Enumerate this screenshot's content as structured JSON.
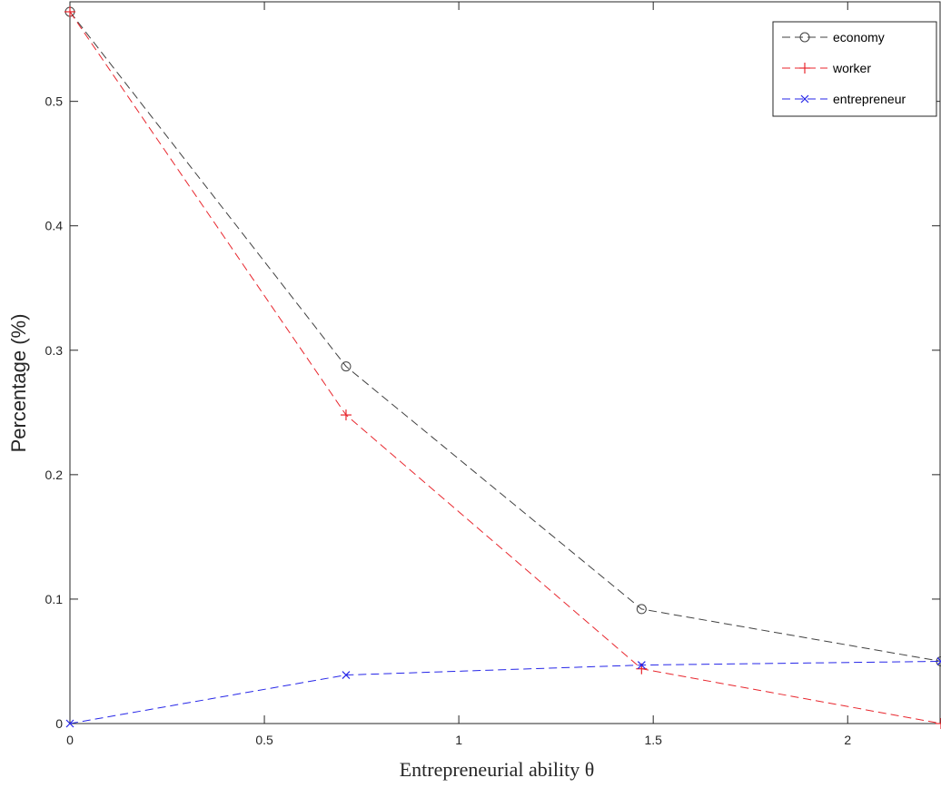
{
  "chart_data": {
    "type": "line",
    "title": "",
    "xlabel": "Entrepreneurial ability θ",
    "ylabel": "Percentage (%)",
    "xlim": [
      0,
      2.24
    ],
    "ylim": [
      0,
      0.58
    ],
    "xticks": [
      0,
      0.5,
      1,
      1.5,
      2
    ],
    "xtick_labels": [
      "0",
      "0.5",
      "1",
      "1.5",
      "2"
    ],
    "yticks": [
      0,
      0.1,
      0.2,
      0.3,
      0.4,
      0.5
    ],
    "ytick_labels": [
      "0",
      "0.1",
      "0.2",
      "0.3",
      "0.4",
      "0.5"
    ],
    "grid": false,
    "legend_position": "top-right",
    "series": [
      {
        "name": "economy",
        "color": "#404040",
        "marker": "circle",
        "line_style": "dashed",
        "x": [
          0,
          0.71,
          1.47,
          2.24
        ],
        "y": [
          0.572,
          0.287,
          0.092,
          0.05
        ]
      },
      {
        "name": "worker",
        "color": "#e8262d",
        "marker": "plus",
        "line_style": "dashed",
        "x": [
          0,
          0.71,
          1.47,
          2.24
        ],
        "y": [
          0.572,
          0.248,
          0.044,
          0.0
        ]
      },
      {
        "name": "entrepreneur",
        "color": "#2626e8",
        "marker": "x",
        "line_style": "dashed",
        "x": [
          0,
          0.71,
          1.47,
          2.24
        ],
        "y": [
          0.0,
          0.039,
          0.047,
          0.05
        ]
      }
    ]
  }
}
